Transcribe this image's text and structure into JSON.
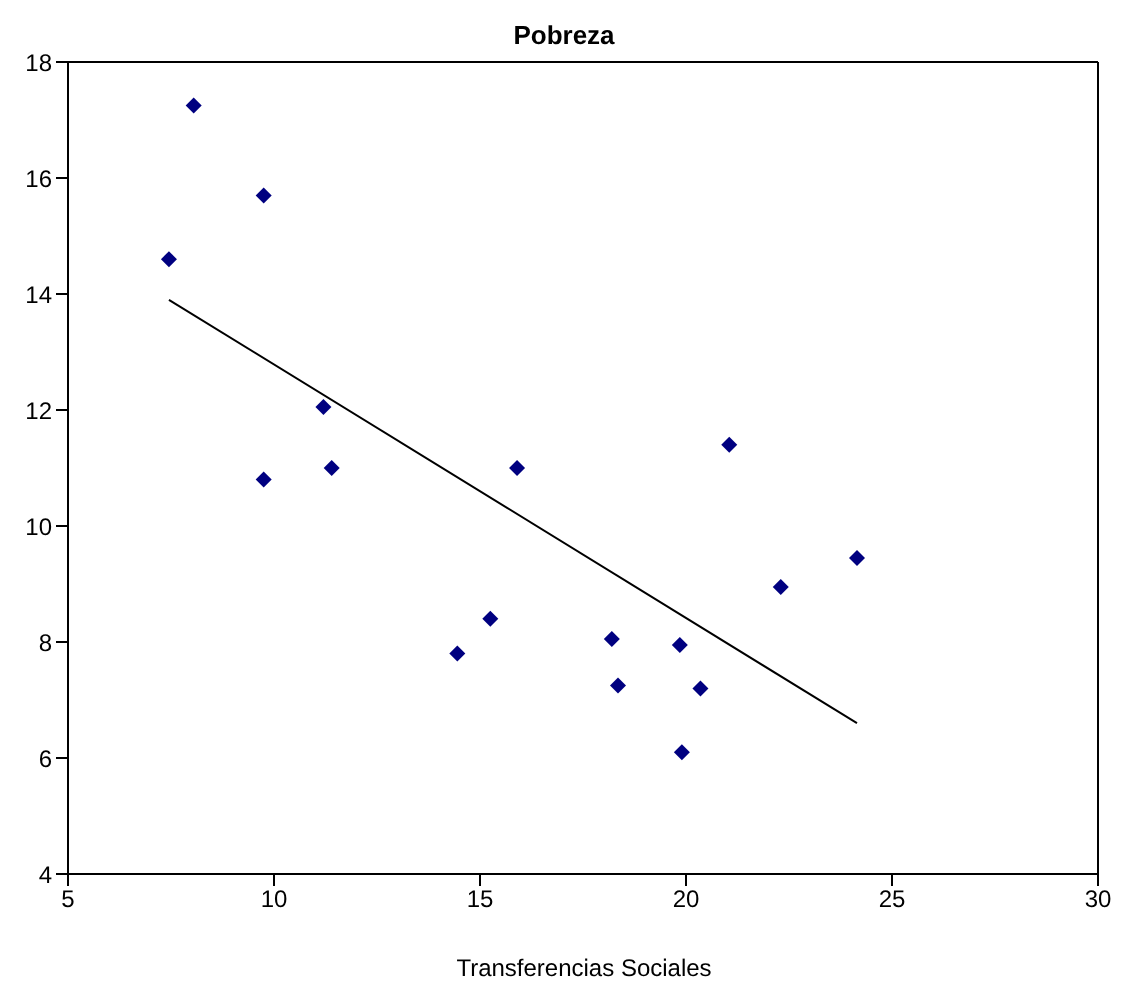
{
  "chart_data": {
    "type": "scatter",
    "title": "Pobreza",
    "xlabel": "Transferencias Sociales",
    "xlim": [
      5,
      30
    ],
    "xticks": [
      5,
      10,
      15,
      20,
      25,
      30
    ],
    "ylim": [
      4,
      18
    ],
    "yticks": [
      4,
      6,
      8,
      10,
      12,
      14,
      16,
      18
    ],
    "marker": "diamond",
    "series": [
      {
        "color": "#000080",
        "x": [
          7.45,
          8.05,
          9.75,
          9.75,
          11.2,
          11.4,
          14.45,
          15.25,
          15.9,
          18.2,
          18.35,
          19.85,
          19.9,
          20.35,
          21.05,
          22.3,
          24.15
        ],
        "values": [
          14.6,
          17.25,
          15.7,
          10.8,
          12.05,
          11.0,
          7.8,
          8.4,
          11.0,
          8.05,
          7.25,
          7.95,
          6.1,
          7.2,
          11.4,
          8.95,
          9.45
        ]
      },
      {
        "type": "line",
        "color": "#000000",
        "marker": "none",
        "x": [
          7.45,
          24.15
        ],
        "values": [
          13.9,
          6.6
        ]
      }
    ]
  }
}
